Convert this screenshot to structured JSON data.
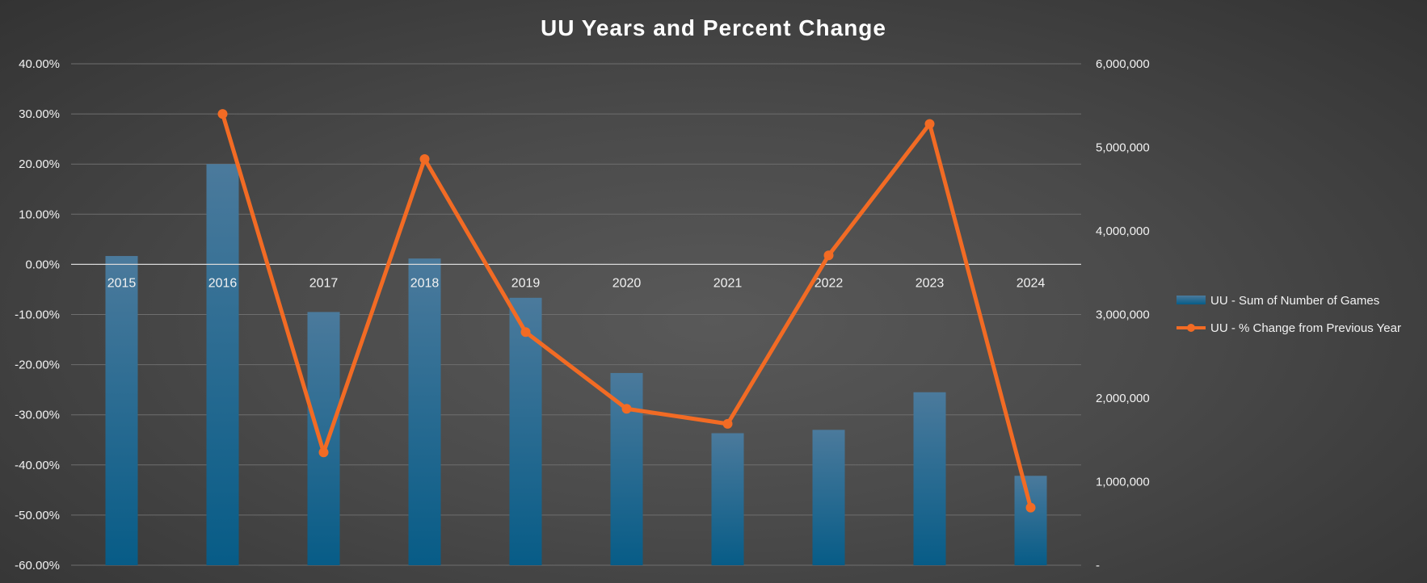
{
  "chart_data": {
    "title": "UU Years and Percent Change",
    "categories": [
      "2015",
      "2016",
      "2017",
      "2018",
      "2019",
      "2020",
      "2021",
      "2022",
      "2023",
      "2024"
    ],
    "series": [
      {
        "name": "UU - Sum of Number of Games",
        "type": "bar",
        "axis": "right",
        "values": [
          3700000,
          4800000,
          3030000,
          3670000,
          3200000,
          2300000,
          1580000,
          1620000,
          2070000,
          1070000
        ]
      },
      {
        "name": "UU - % Change from Previous Year",
        "type": "line",
        "axis": "left",
        "values": [
          null,
          30.0,
          -37.5,
          21.0,
          -13.5,
          -28.8,
          -31.8,
          1.8,
          28.0,
          -48.5
        ]
      }
    ],
    "y_left": {
      "ylim": [
        -60,
        40
      ],
      "ticks": [
        40,
        30,
        20,
        10,
        0,
        -10,
        -20,
        -30,
        -40,
        -50,
        -60
      ],
      "tick_labels": [
        "40.00%",
        "30.00%",
        "20.00%",
        "10.00%",
        "0.00%",
        "-10.00%",
        "-20.00%",
        "-30.00%",
        "-40.00%",
        "-50.00%",
        "-60.00%"
      ]
    },
    "y_right": {
      "ylim": [
        0,
        6000000
      ],
      "ticks": [
        6000000,
        5000000,
        4000000,
        3000000,
        2000000,
        1000000,
        0
      ],
      "tick_labels": [
        "6,000,000",
        "5,000,000",
        "4,000,000",
        "3,000,000",
        "2,000,000",
        "1,000,000",
        "-"
      ]
    },
    "grid": true,
    "legend_position": "right",
    "colors": {
      "bar_top": "#4b7a9c",
      "bar_bottom": "#075c87",
      "line": "#f26b24",
      "grid": "#6e6e6e",
      "zero_line": "#d9d9d9"
    }
  }
}
